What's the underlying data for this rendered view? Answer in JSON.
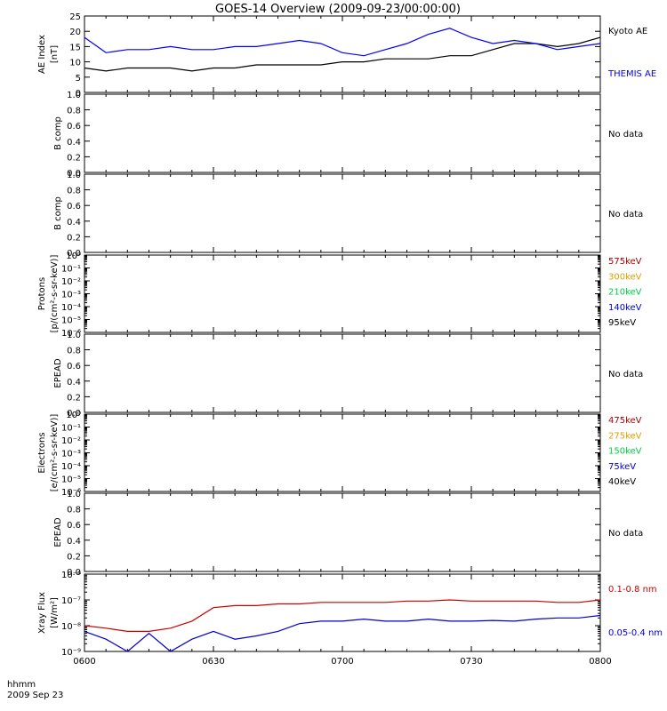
{
  "title": "GOES-14 Overview (2009-09-23/00:00:00)",
  "x_axis": {
    "tick_labels": [
      "0600",
      "0630",
      "0700",
      "0730",
      "0800"
    ],
    "corner_label_1": "hhmm",
    "corner_label_2": "2009 Sep 23"
  },
  "chart_data": [
    {
      "type": "line",
      "panel": "ae-index",
      "ylabel_line1": "AE Index",
      "ylabel_line2": "[nT]",
      "ylim": [
        0,
        25
      ],
      "yticks": [
        "0",
        "5",
        "10",
        "15",
        "20",
        "25"
      ],
      "x": [
        "06:00",
        "06:05",
        "06:10",
        "06:15",
        "06:20",
        "06:25",
        "06:30",
        "06:35",
        "06:40",
        "06:45",
        "06:50",
        "06:55",
        "07:00",
        "07:05",
        "07:10",
        "07:15",
        "07:20",
        "07:25",
        "07:30",
        "07:35",
        "07:40",
        "07:45",
        "07:50",
        "07:55",
        "08:00"
      ],
      "series": [
        {
          "name": "Kyoto AE",
          "color": "#000000",
          "values": [
            8,
            7,
            8,
            8,
            8,
            7,
            8,
            8,
            9,
            9,
            9,
            9,
            10,
            10,
            11,
            11,
            11,
            12,
            12,
            14,
            16,
            16,
            15,
            16,
            18
          ]
        },
        {
          "name": "THEMIS AE",
          "color": "#0000ff",
          "values": [
            18,
            13,
            14,
            14,
            15,
            14,
            14,
            15,
            15,
            16,
            17,
            16,
            13,
            12,
            14,
            16,
            19,
            21,
            18,
            16,
            17,
            16,
            14,
            15,
            16
          ]
        }
      ]
    },
    {
      "type": "line",
      "panel": "b-comp-1",
      "ylabel": "B comp",
      "ylim": [
        0,
        1
      ],
      "yticks": [
        "0.0",
        "0.2",
        "0.4",
        "0.6",
        "0.8",
        "1.0"
      ],
      "status": "No data"
    },
    {
      "type": "line",
      "panel": "b-comp-2",
      "ylabel": "B comp",
      "ylim": [
        0,
        1
      ],
      "yticks": [
        "0.0",
        "0.2",
        "0.4",
        "0.6",
        "0.8",
        "1.0"
      ],
      "status": "No data"
    },
    {
      "type": "line",
      "panel": "protons",
      "ylabel_line1": "Protons",
      "ylabel_line2": "[p/(cm²-s-sr-keV)]",
      "scale": "log",
      "ylim": [
        1e-06,
        1
      ],
      "yticks": [
        "10⁻⁶",
        "10⁻⁵",
        "10⁻⁴",
        "10⁻³",
        "10⁻²",
        "10⁻¹",
        "10⁰"
      ],
      "series": [
        {
          "name": "575keV",
          "color": "#aa0000"
        },
        {
          "name": "300keV",
          "color": "#e0a000"
        },
        {
          "name": "210keV",
          "color": "#00cc44"
        },
        {
          "name": "140keV",
          "color": "#0000cc"
        },
        {
          "name": "95keV",
          "color": "#000000"
        }
      ]
    },
    {
      "type": "line",
      "panel": "epead-1",
      "ylabel": "EPEAD",
      "ylim": [
        0,
        1
      ],
      "yticks": [
        "0.0",
        "0.2",
        "0.4",
        "0.6",
        "0.8",
        "1.0"
      ],
      "status": "No data"
    },
    {
      "type": "line",
      "panel": "electrons",
      "ylabel_line1": "Electrons",
      "ylabel_line2": "[e/(cm²-s-sr-keV)]",
      "scale": "log",
      "ylim": [
        1e-06,
        1
      ],
      "yticks": [
        "10⁻⁶",
        "10⁻⁵",
        "10⁻⁴",
        "10⁻³",
        "10⁻²",
        "10⁻¹",
        "10⁰"
      ],
      "series": [
        {
          "name": "475keV",
          "color": "#aa0000"
        },
        {
          "name": "275keV",
          "color": "#e0a000"
        },
        {
          "name": "150keV",
          "color": "#00cc44"
        },
        {
          "name": "75keV",
          "color": "#0000cc"
        },
        {
          "name": "40keV",
          "color": "#000000"
        }
      ]
    },
    {
      "type": "line",
      "panel": "epead-2",
      "ylabel": "EPEAD",
      "ylim": [
        0,
        1
      ],
      "yticks": [
        "0.0",
        "0.2",
        "0.4",
        "0.6",
        "0.8",
        "1.0"
      ],
      "status": "No data"
    },
    {
      "type": "line",
      "panel": "xray",
      "ylabel_line1": "Xray Flux",
      "ylabel_line2": "[W/m²]",
      "scale": "log",
      "ylim": [
        1e-09,
        1e-06
      ],
      "yticks": [
        "10⁻⁹",
        "10⁻⁸",
        "10⁻⁷",
        "10⁻⁶"
      ],
      "x": [
        "06:00",
        "06:05",
        "06:10",
        "06:15",
        "06:20",
        "06:25",
        "06:30",
        "06:35",
        "06:40",
        "06:45",
        "06:50",
        "06:55",
        "07:00",
        "07:05",
        "07:10",
        "07:15",
        "07:20",
        "07:25",
        "07:30",
        "07:35",
        "07:40",
        "07:45",
        "07:50",
        "07:55",
        "08:00"
      ],
      "series": [
        {
          "name": "0.1-0.8 nm",
          "color": "#cc0000",
          "values": [
            1e-08,
            8e-09,
            6e-09,
            6e-09,
            8e-09,
            1.5e-08,
            5e-08,
            6e-08,
            6e-08,
            7e-08,
            7e-08,
            8e-08,
            8e-08,
            8e-08,
            8e-08,
            9e-08,
            9e-08,
            1e-07,
            9e-08,
            9e-08,
            9e-08,
            9e-08,
            8e-08,
            8e-08,
            1e-07
          ]
        },
        {
          "name": "0.05-0.4 nm",
          "color": "#0000cc",
          "values": [
            6e-09,
            3e-09,
            1e-09,
            5e-09,
            1e-09,
            3e-09,
            6e-09,
            3e-09,
            4e-09,
            6e-09,
            1.2e-08,
            1.5e-08,
            1.5e-08,
            1.8e-08,
            1.5e-08,
            1.5e-08,
            1.8e-08,
            1.5e-08,
            1.5e-08,
            1.6e-08,
            1.5e-08,
            1.8e-08,
            2e-08,
            2e-08,
            2.5e-08
          ]
        }
      ]
    }
  ],
  "colors": {
    "axes": "#000000",
    "background": "#ffffff"
  }
}
